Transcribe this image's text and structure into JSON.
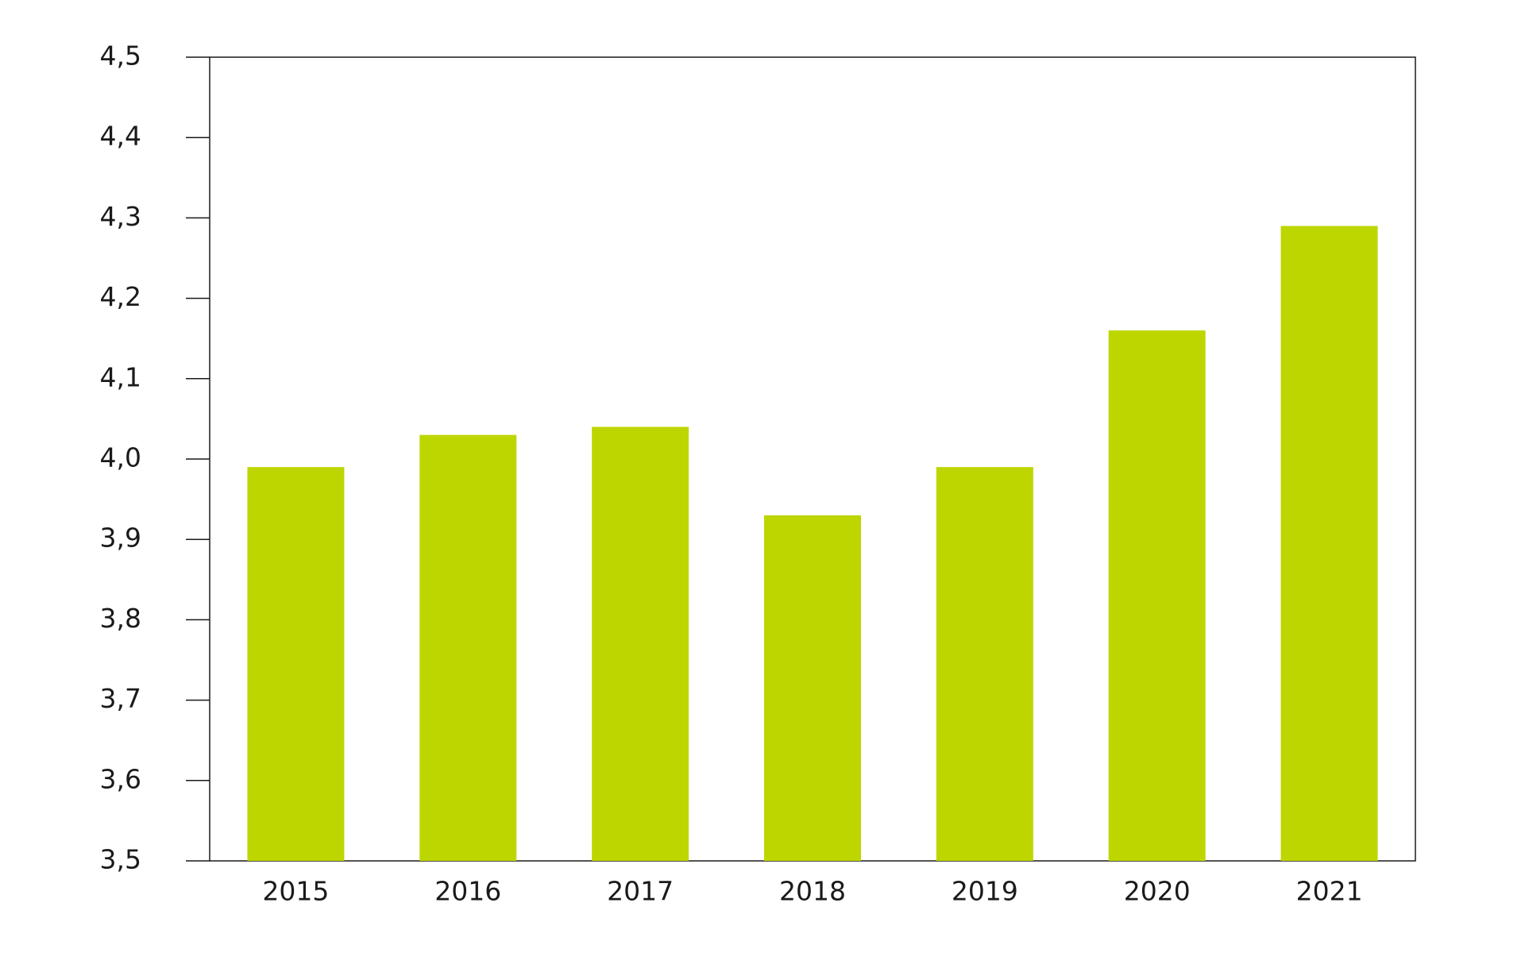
{
  "chart_data": {
    "type": "bar",
    "title": "",
    "xlabel": "",
    "ylabel": "",
    "categories": [
      "2015",
      "2016",
      "2017",
      "2018",
      "2019",
      "2020",
      "2021"
    ],
    "values": [
      3.99,
      4.03,
      4.04,
      3.93,
      3.99,
      4.16,
      4.29
    ],
    "ylim": [
      3.5,
      4.5
    ],
    "y_ticks": [
      3.5,
      3.6,
      3.7,
      3.8,
      3.9,
      4.0,
      4.1,
      4.2,
      4.3,
      4.4,
      4.5
    ],
    "y_tick_labels": [
      "3,5",
      "3,6",
      "3,7",
      "3,8",
      "3,9",
      "4,0",
      "4,1",
      "4,2",
      "4,3",
      "4,4",
      "4,5"
    ],
    "grid": false,
    "legend": "none",
    "bar_color": "#bed600",
    "axis_color": "#1a1a1a"
  }
}
